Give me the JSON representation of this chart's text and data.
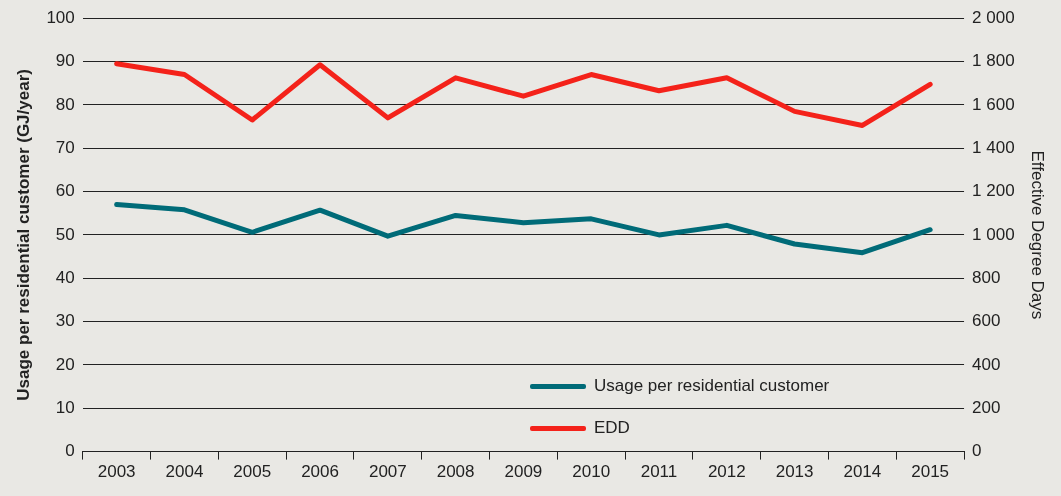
{
  "chart_data": {
    "type": "line",
    "ylabel": "Usage per residential customer (GJ/year)",
    "y2label": "Effective Degree Days",
    "categories": [
      "2003",
      "2004",
      "2005",
      "2006",
      "2007",
      "2008",
      "2009",
      "2010",
      "2011",
      "2012",
      "2013",
      "2014",
      "2015"
    ],
    "series": [
      {
        "name": "Usage per residential customer",
        "color": "#006b78",
        "values": [
          57,
          55.8,
          50.6,
          55.7,
          49.7,
          54.5,
          52.8,
          53.7,
          50,
          52.2,
          47.9,
          45.9,
          51.2
        ]
      },
      {
        "name": "EDD",
        "color": "#f4221a",
        "axis": "y2",
        "values": [
          1790,
          1740,
          1530,
          1785,
          1540,
          1725,
          1640,
          1740,
          1665,
          1725,
          1570,
          1505,
          1695
        ]
      }
    ],
    "ylim": [
      0,
      100
    ],
    "yticks": [
      0,
      10,
      20,
      30,
      40,
      50,
      60,
      70,
      80,
      90,
      100
    ],
    "y2lim": [
      0,
      2000
    ],
    "y2ticks": [
      0,
      200,
      400,
      600,
      800,
      {
        "value": 1000,
        "label": "1 000"
      },
      {
        "value": 1200,
        "label": "1 200"
      },
      {
        "value": 1400,
        "label": "1 400"
      },
      {
        "value": 1600,
        "label": "1 600"
      },
      {
        "value": 1800,
        "label": "1 800"
      },
      {
        "value": 2000,
        "label": "2 000"
      }
    ],
    "grid": "y",
    "legend": "bottom right",
    "marker": "none",
    "line_style": "solid"
  }
}
